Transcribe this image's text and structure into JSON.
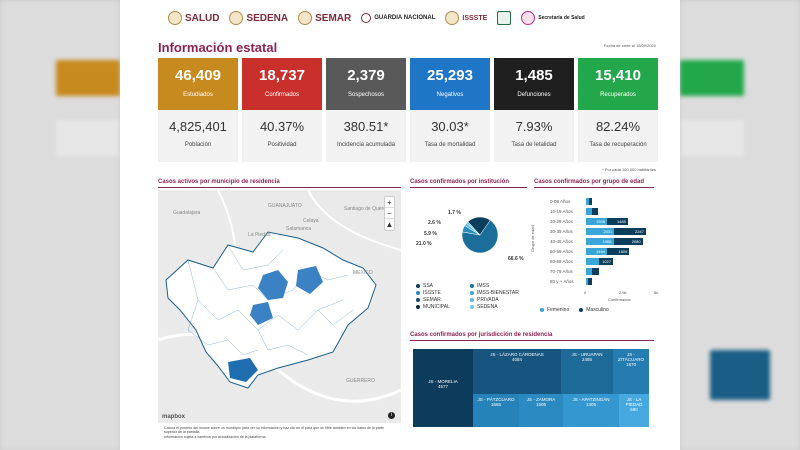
{
  "header": {
    "logos": [
      "SALUD",
      "SEDENA",
      "SEMAR",
      "GUARDIA NACIONAL",
      "ISSSTE",
      "IMSS",
      "Secretaría de Salud"
    ]
  },
  "title": "Información estatal",
  "cut_date": "Fecha de corte al 15/09/2020",
  "kpis": [
    {
      "value": "46,409",
      "label": "Estudiados",
      "color": "#c78a1e",
      "bottom_value": "4,825,401",
      "bottom_label": "Población"
    },
    {
      "value": "18,737",
      "label": "Confirmados",
      "color": "#c9302c",
      "bottom_value": "40.37%",
      "bottom_label": "Positividad"
    },
    {
      "value": "2,379",
      "label": "Sospechosos",
      "color": "#595959",
      "bottom_value": "380.51*",
      "bottom_label": "Incidencia acumulada"
    },
    {
      "value": "25,293",
      "label": "Negativos",
      "color": "#1f76c6",
      "bottom_value": "30.03*",
      "bottom_label": "Tasa de mortalidad"
    },
    {
      "value": "1,485",
      "label": "Defunciones",
      "color": "#1f1f1f",
      "bottom_value": "7.93%",
      "bottom_label": "Tasa de letalidad"
    },
    {
      "value": "15,410",
      "label": "Recuperados",
      "color": "#22a84a",
      "bottom_value": "82.24%",
      "bottom_label": "Tasa de recuperación"
    }
  ],
  "footnote": "* Por cada 100,000 habitantes",
  "sections": {
    "map": "Casos activos por municipio de residencia",
    "institution": "Casos confirmados por institución",
    "age": "Casos confirmados por grupo de edad",
    "jurisdiction": "Casos confirmados por jurisdicción de residencia"
  },
  "map": {
    "labels": [
      "GUANAJUATO",
      "Guadalajara",
      "Santiago de Querétaro",
      "MEXICO",
      "GUERRERO",
      "La Piedad",
      "Celaya",
      "Salamanca"
    ],
    "zoom_in": "+",
    "zoom_out": "−",
    "compass": "▲",
    "attribution": "mapbox",
    "notes": [
      "Coloca el puntero del mouse sobre un municipio para ver su información y haz clic en él para que se filtre también en los datos de la parte superior de la pantalla.",
      "Información sujeta a cambios por actualización de la plataforma."
    ]
  },
  "chart_data": [
    {
      "type": "pie",
      "title": "Casos confirmados por institución",
      "labels": [
        "SSA",
        "IMSS",
        "ISSSTE",
        "IMSS-BIENESTAR",
        "SEMAR",
        "PRIVADA",
        "MUNICIPAL",
        "SEDENA"
      ],
      "values": [
        21.0,
        66.6,
        5.9,
        0,
        0,
        2.6,
        0,
        1.7
      ],
      "shown_labels": [
        "1.7 %",
        "2.6 %",
        "5.9 %",
        "21.0 %",
        "66.6 %"
      ],
      "colors": [
        "#0b3d5c",
        "#1b6e99",
        "#2a8cb8",
        "#3aa6d8",
        "#134b6e",
        "#5bb8e0",
        "#0d2f44",
        "#6ec6ea"
      ]
    },
    {
      "type": "bar",
      "title": "Casos confirmados por grupo de edad",
      "ylabel": "Grupo de edad",
      "xlabel": "Confirmados",
      "categories": [
        "0-09 Años",
        "10-19 Años",
        "20-29 Años",
        "30-39 Años",
        "40-49 Años",
        "50-59 Años",
        "60-69 Años",
        "70-79 Años",
        "80 y + Años"
      ],
      "x_ticks": [
        "0",
        "2.5k",
        "5k"
      ],
      "series": [
        {
          "name": "Femenino",
          "values": [
            200,
            400,
            1506,
            2031,
            1966,
            1494,
            900,
            400,
            150
          ],
          "labels": [
            "",
            "",
            "1506",
            "2031",
            "1966",
            "1494",
            "",
            "",
            ""
          ]
        },
        {
          "name": "Masculino",
          "values": [
            220,
            430,
            1485,
            2247,
            2080,
            1606,
            1027,
            550,
            250
          ],
          "labels": [
            "",
            "",
            "1485",
            "2247",
            "2080",
            "1606",
            "1027",
            "",
            ""
          ]
        }
      ],
      "xlim": [
        0,
        5000
      ]
    },
    {
      "type": "table",
      "title": "Casos confirmados por jurisdicción de residencia",
      "items": [
        {
          "name": "JS - MORELIA",
          "value": "4577"
        },
        {
          "name": "JS - LÁZARO CÁRDENAS",
          "value": "4084"
        },
        {
          "name": "JS - URUAPAN",
          "value": "2485"
        },
        {
          "name": "JS - ZITÁCUARO",
          "value": "1870"
        },
        {
          "name": "JS - ZAMORA",
          "value": "1505"
        },
        {
          "name": "JS - PÁTZCUARO",
          "value": "1665"
        },
        {
          "name": "JS - APATZINGÁN",
          "value": "1305"
        },
        {
          "name": "JS - LA PIEDAD",
          "value": "590"
        }
      ]
    }
  ]
}
